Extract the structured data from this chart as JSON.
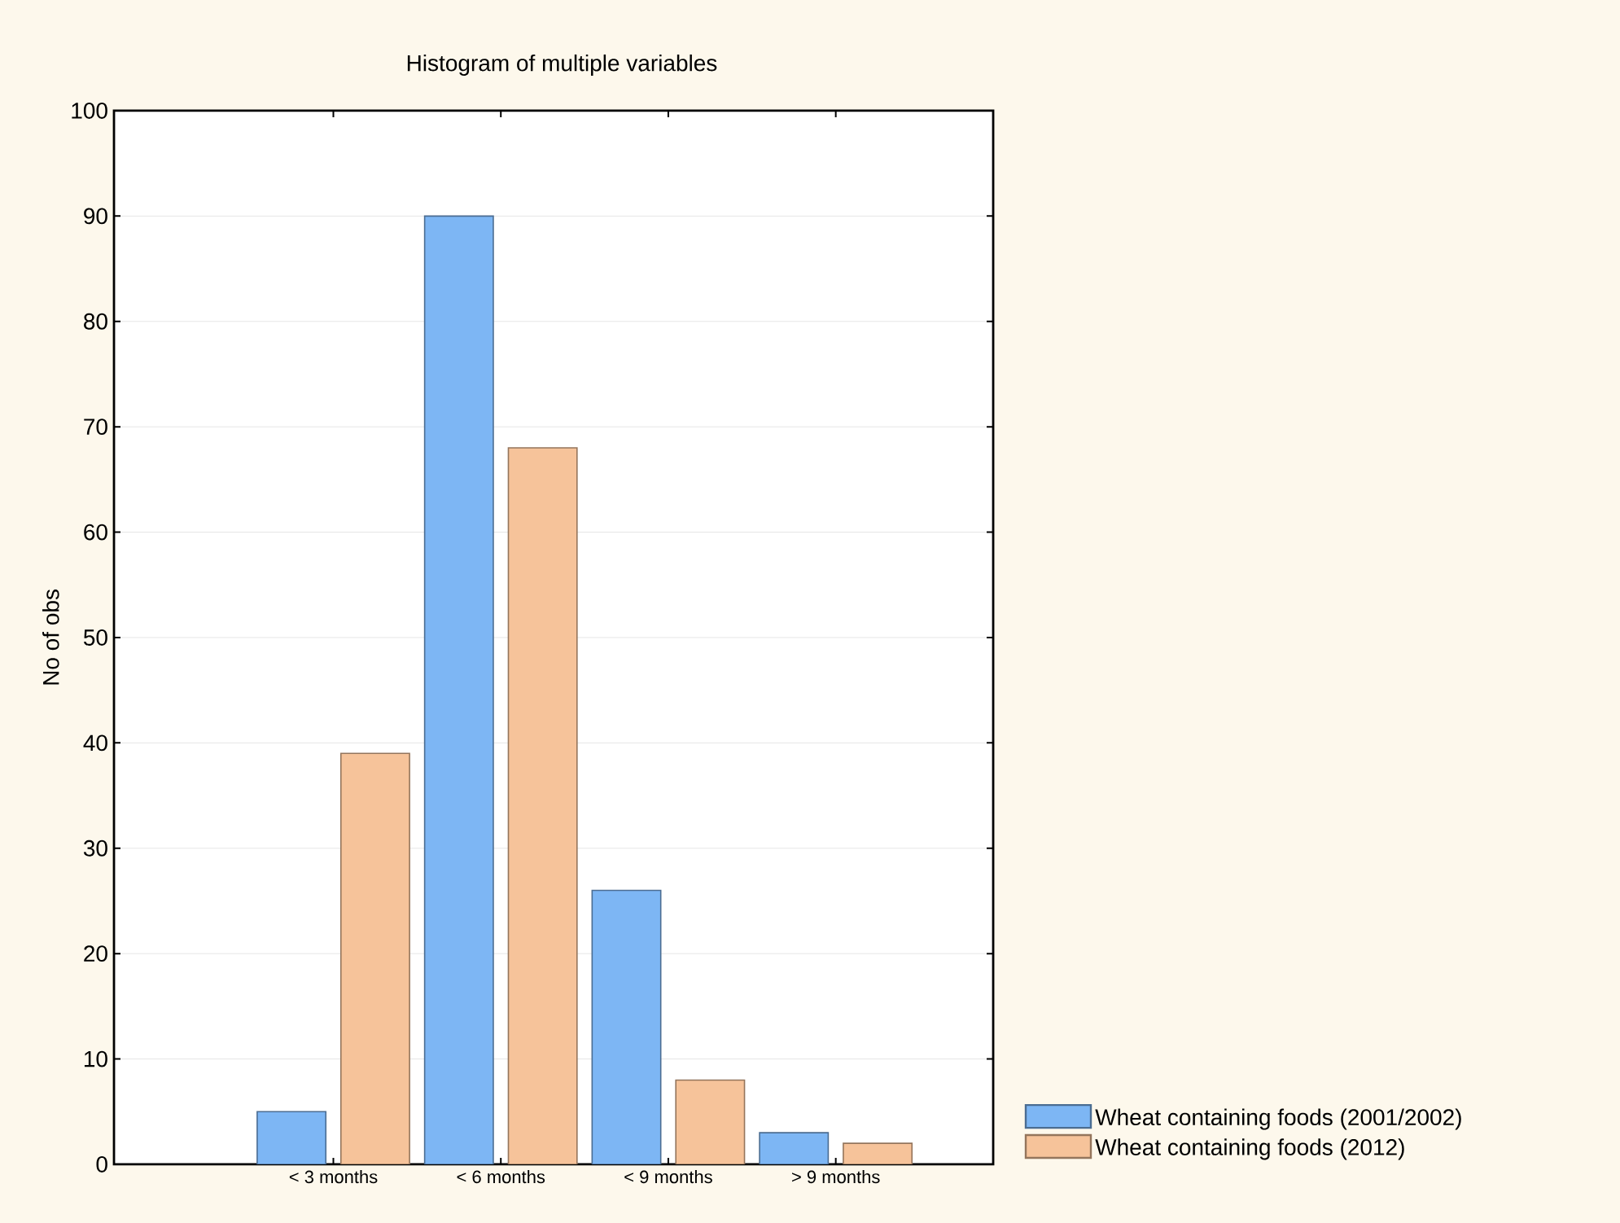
{
  "chart_data": {
    "type": "bar",
    "title": "Histogram of multiple variables",
    "ylabel": "No of obs",
    "categories": [
      "< 3 months",
      "< 6 months",
      "< 9 months",
      "> 9 months"
    ],
    "series": [
      {
        "name": "Wheat containing foods (2001/2002)",
        "color": "#7db6f4",
        "values": [
          5,
          90,
          26,
          3
        ]
      },
      {
        "name": "Wheat containing foods (2012)",
        "color": "#f6c39a",
        "values": [
          39,
          68,
          8,
          2
        ]
      }
    ],
    "ylim": [
      0,
      100
    ],
    "yticks": [
      0,
      10,
      20,
      30,
      40,
      50,
      60,
      70,
      80,
      90,
      100
    ],
    "grid": "y",
    "legend": "bottom right"
  }
}
